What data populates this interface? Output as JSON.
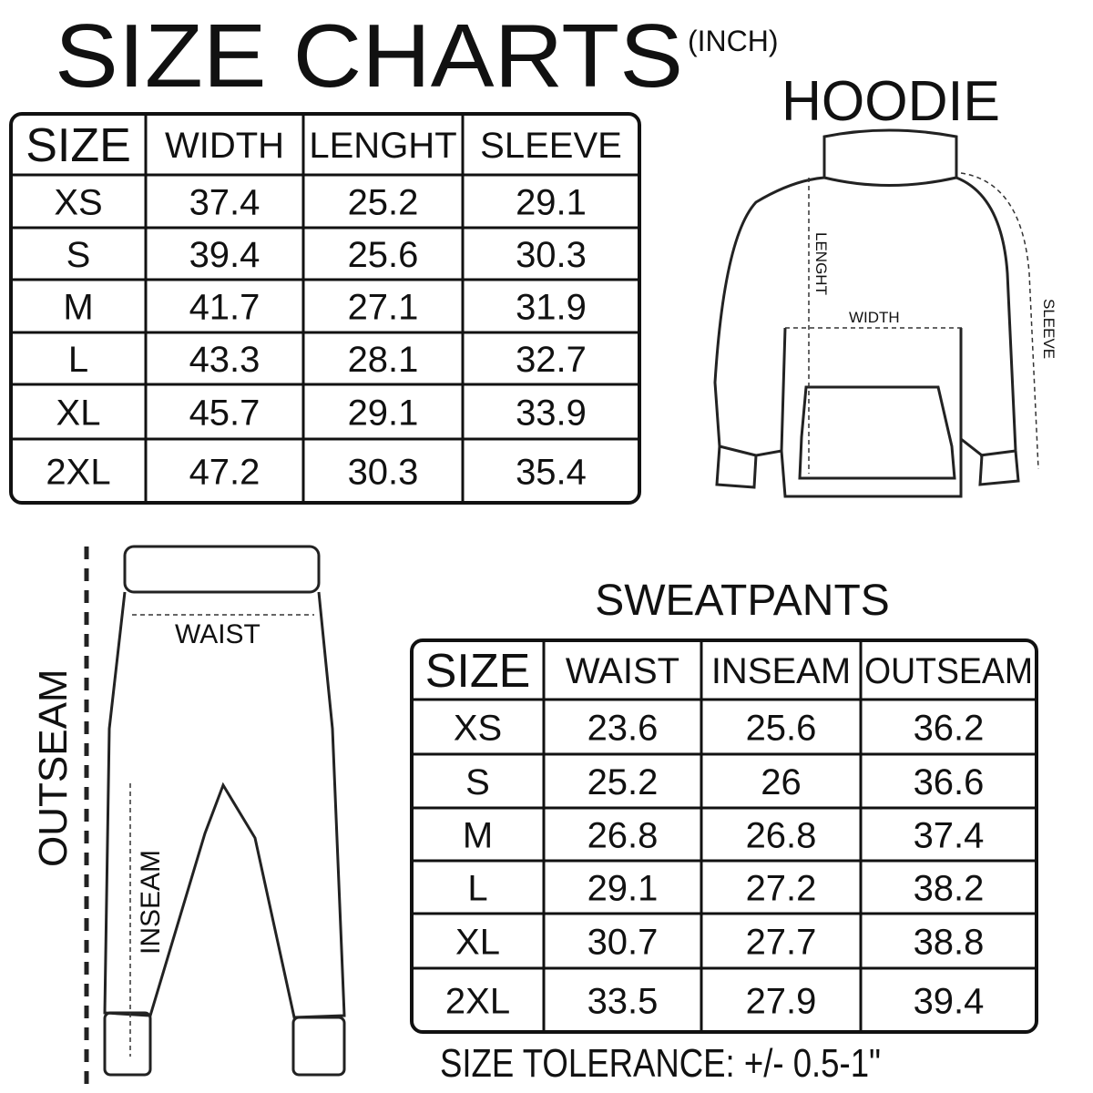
{
  "header": {
    "title": "SIZE CHARTS",
    "unit": "(INCH)"
  },
  "hoodie": {
    "title": "HOODIE",
    "table": {
      "header": [
        "SIZE",
        "WIDTH",
        "LENGHT",
        "SLEEVE"
      ],
      "rows": [
        [
          "XS",
          "37.4",
          "25.2",
          "29.1"
        ],
        [
          "S",
          "39.4",
          "25.6",
          "30.3"
        ],
        [
          "M",
          "41.7",
          "27.1",
          "31.9"
        ],
        [
          "L",
          "43.3",
          "28.1",
          "32.7"
        ],
        [
          "XL",
          "45.7",
          "29.1",
          "33.9"
        ],
        [
          "2XL",
          "47.2",
          "30.3",
          "35.4"
        ]
      ]
    },
    "diagram_labels": {
      "length": "LENGHT",
      "width": "WIDTH",
      "sleeve": "SLEEVE"
    }
  },
  "sweatpants": {
    "title": "SWEATPANTS",
    "table": {
      "header": [
        "SIZE",
        "WAIST",
        "INSEAM",
        "OUTSEAM"
      ],
      "rows": [
        [
          "XS",
          "23.6",
          "25.6",
          "36.2"
        ],
        [
          "S",
          "25.2",
          "26",
          "36.6"
        ],
        [
          "M",
          "26.8",
          "26.8",
          "37.4"
        ],
        [
          "L",
          "29.1",
          "27.2",
          "38.2"
        ],
        [
          "XL",
          "30.7",
          "27.7",
          "38.8"
        ],
        [
          "2XL",
          "33.5",
          "27.9",
          "39.4"
        ]
      ]
    },
    "diagram_labels": {
      "waist": "WAIST",
      "outseam": "OUTSEAM",
      "inseam": "INSEAM"
    }
  },
  "footer": {
    "tolerance": "SIZE TOLERANCE: +/- 0.5-1\""
  }
}
